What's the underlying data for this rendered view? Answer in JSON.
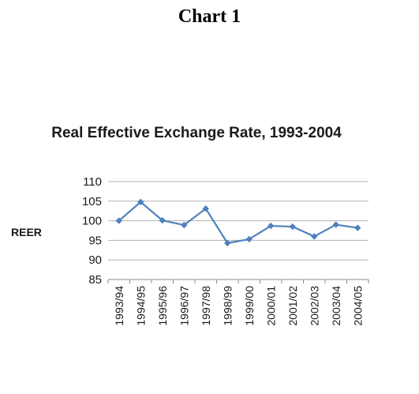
{
  "heading": "Chart 1",
  "chart_data": {
    "type": "line",
    "title": "Real Effective Exchange Rate, 1993-2004",
    "xlabel": "",
    "ylabel": "REER",
    "ylim": [
      85,
      110
    ],
    "yticks": [
      85,
      90,
      95,
      100,
      105,
      110
    ],
    "grid": true,
    "legend": "none",
    "categories": [
      "1993/94",
      "1994/95",
      "1995/96",
      "1996/97",
      "1997/98",
      "1998/99",
      "1999/00",
      "2000/01",
      "2001/02",
      "2002/03",
      "2003/04",
      "2004/05"
    ],
    "series": [
      {
        "values": [
          100.0,
          104.8,
          100.1,
          98.9,
          103.1,
          94.3,
          95.3,
          98.7,
          98.5,
          96.0,
          99.0,
          98.2
        ],
        "color": "#4f81bd"
      }
    ]
  }
}
